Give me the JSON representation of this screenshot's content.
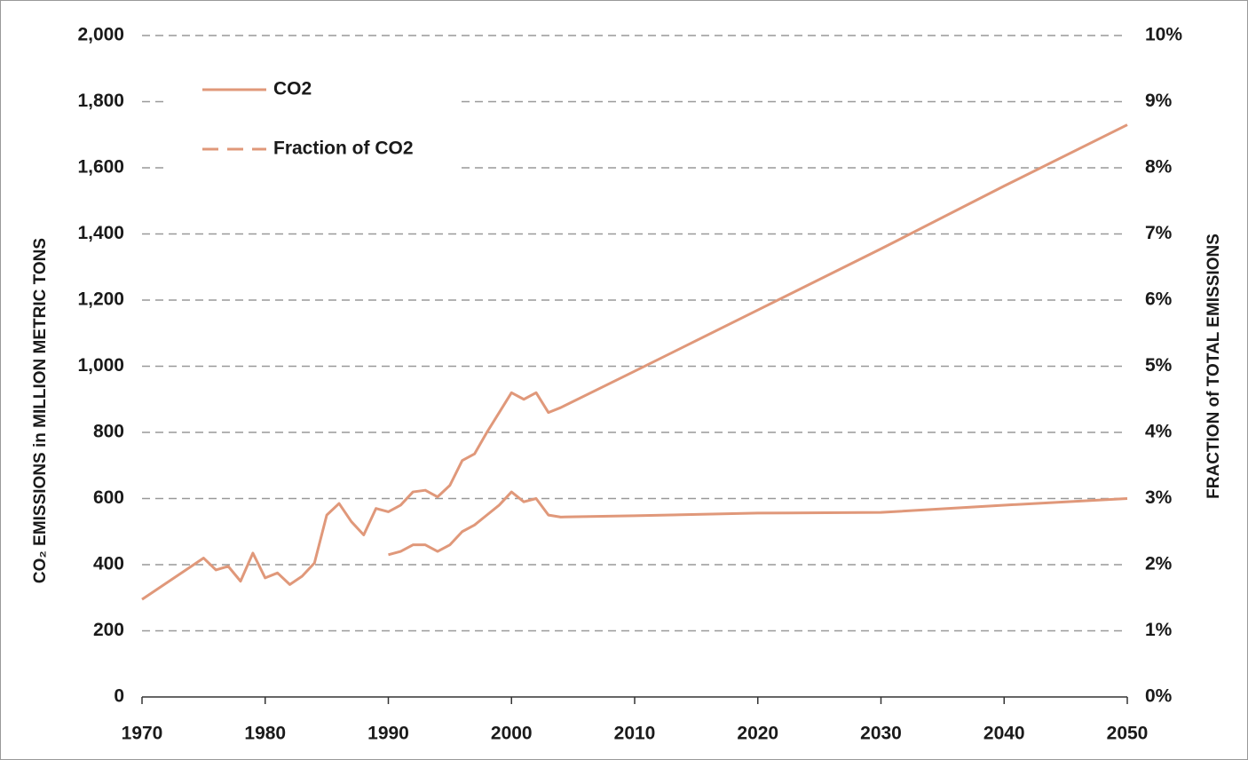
{
  "chart_data": {
    "type": "line",
    "y_label": "CO₂ EMISSIONS in MILLION METRIC TONS",
    "y2_label": "FRACTION of TOTAL EMISSIONS",
    "x": [
      1970,
      1975,
      1976,
      1977,
      1978,
      1979,
      1980,
      1981,
      1982,
      1983,
      1984,
      1985,
      1986,
      1987,
      1988,
      1989,
      1990,
      1991,
      1992,
      1993,
      1994,
      1995,
      1996,
      1997,
      1998,
      1999,
      2000,
      2001,
      2002,
      2003,
      2004,
      2010,
      2020,
      2030,
      2040,
      2050
    ],
    "series": [
      {
        "name": "CO2",
        "color": "#e0987a",
        "values": [
          295,
          420,
          384,
          395,
          350,
          435,
          360,
          375,
          340,
          365,
          405,
          550,
          585,
          530,
          490,
          570,
          560,
          580,
          620,
          625,
          605,
          640,
          715,
          735,
          800,
          860,
          920,
          900,
          920,
          860,
          875,
          985,
          1170,
          1355,
          1545,
          1730
        ]
      },
      {
        "name": "Fraction of CO2",
        "color": "#e0987a",
        "axis": "y2",
        "values": [
          null,
          null,
          null,
          null,
          null,
          null,
          null,
          null,
          null,
          null,
          null,
          null,
          null,
          null,
          null,
          null,
          2.15,
          2.2,
          2.3,
          2.3,
          2.2,
          2.3,
          2.5,
          2.6,
          2.75,
          2.9,
          3.1,
          2.95,
          3.0,
          2.75,
          2.72,
          2.74,
          2.78,
          2.79,
          2.9,
          3.0
        ]
      }
    ],
    "xlim": [
      1970,
      2050
    ],
    "xticks": [
      1970,
      1980,
      1990,
      2000,
      2010,
      2020,
      2030,
      2040,
      2050
    ],
    "ylim": [
      0,
      2000
    ],
    "yticks": [
      0,
      200,
      400,
      600,
      800,
      {
        "value": 1000,
        "label": "1,000"
      },
      {
        "value": 1200,
        "label": "1,200"
      },
      {
        "value": 1400,
        "label": "1,400"
      },
      {
        "value": 1600,
        "label": "1,600"
      },
      {
        "value": 1800,
        "label": "1,800"
      },
      {
        "value": 2000,
        "label": "2,000"
      }
    ],
    "y2lim": [
      0,
      10
    ],
    "y2ticks": [
      {
        "value": 0,
        "label": "0%"
      },
      {
        "value": 1,
        "label": "1%"
      },
      {
        "value": 2,
        "label": "2%"
      },
      {
        "value": 3,
        "label": "3%"
      },
      {
        "value": 4,
        "label": "4%"
      },
      {
        "value": 5,
        "label": "5%"
      },
      {
        "value": 6,
        "label": "6%"
      },
      {
        "value": 7,
        "label": "7%"
      },
      {
        "value": 8,
        "label": "8%"
      },
      {
        "value": 9,
        "label": "9%"
      },
      {
        "value": 10,
        "label": "10%"
      }
    ],
    "grid": true
  }
}
